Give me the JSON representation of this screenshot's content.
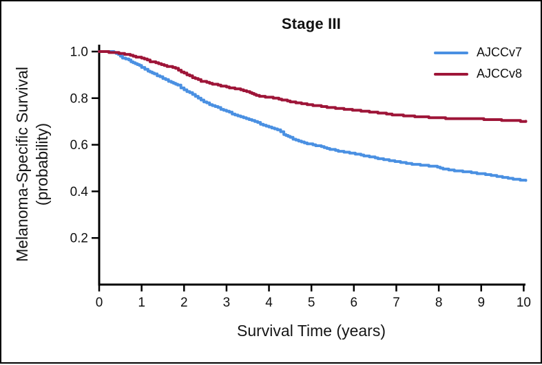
{
  "figure": {
    "background": "#ffffff",
    "border_color": "#000000",
    "axis_color": "#000000",
    "tick_label_color": "#111111"
  },
  "chart_data": {
    "type": "line",
    "subtype": "kaplan-meier-step",
    "title": "Stage III",
    "xlabel": "Survival Time (years)",
    "ylabel_lines": [
      "Melanoma-Specific Survival",
      "(probability)"
    ],
    "xlim": [
      0,
      10
    ],
    "ylim": [
      0,
      1.0
    ],
    "xticks": [
      0,
      1,
      2,
      3,
      4,
      5,
      6,
      7,
      8,
      9,
      10
    ],
    "xtick_labels": [
      "0",
      "1",
      "2",
      "3",
      "4",
      "5",
      "6",
      "7",
      "8",
      "9",
      "10"
    ],
    "yticks": [
      0.2,
      0.4,
      0.6,
      0.8,
      1.0
    ],
    "ytick_labels": [
      "0.2",
      "0.4",
      "0.6",
      "0.8",
      "1.0"
    ],
    "grid": false,
    "legend_position": "top-right",
    "series": [
      {
        "name": "AJCCv7",
        "color": "#4A90E2",
        "x": [
          0,
          0.3,
          0.45,
          0.55,
          0.7,
          0.85,
          1.0,
          1.15,
          1.3,
          1.5,
          1.7,
          1.85,
          2.0,
          2.2,
          2.4,
          2.6,
          2.8,
          3.0,
          3.2,
          3.4,
          3.6,
          3.8,
          4.0,
          4.2,
          4.35,
          4.5,
          4.7,
          4.9,
          5.1,
          5.3,
          5.5,
          5.7,
          5.9,
          6.1,
          6.3,
          6.5,
          6.7,
          6.9,
          7.1,
          7.3,
          7.5,
          7.7,
          7.9,
          8.1,
          8.3,
          8.5,
          8.7,
          8.9,
          9.1,
          9.3,
          9.5,
          9.7,
          9.85,
          10.05
        ],
        "y": [
          1.0,
          0.998,
          0.988,
          0.972,
          0.962,
          0.95,
          0.932,
          0.915,
          0.903,
          0.884,
          0.868,
          0.854,
          0.836,
          0.818,
          0.79,
          0.773,
          0.758,
          0.745,
          0.728,
          0.715,
          0.703,
          0.69,
          0.676,
          0.664,
          0.645,
          0.63,
          0.617,
          0.605,
          0.597,
          0.588,
          0.578,
          0.571,
          0.566,
          0.558,
          0.55,
          0.544,
          0.536,
          0.53,
          0.525,
          0.519,
          0.514,
          0.51,
          0.506,
          0.496,
          0.491,
          0.487,
          0.482,
          0.477,
          0.473,
          0.466,
          0.461,
          0.455,
          0.45,
          0.447
        ]
      },
      {
        "name": "AJCCv8",
        "color": "#9E1538",
        "x": [
          0,
          0.4,
          0.6,
          0.8,
          1.0,
          1.2,
          1.4,
          1.6,
          1.8,
          2.0,
          2.2,
          2.4,
          2.6,
          2.8,
          3.0,
          3.2,
          3.4,
          3.55,
          3.7,
          3.85,
          4.1,
          4.3,
          4.5,
          4.7,
          4.9,
          5.1,
          5.3,
          5.5,
          5.7,
          5.9,
          6.1,
          6.3,
          6.5,
          6.7,
          6.9,
          7.1,
          7.3,
          7.5,
          7.7,
          7.9,
          8.1,
          8.4,
          8.7,
          9.0,
          9.3,
          9.6,
          9.8,
          10.05
        ],
        "y": [
          1.0,
          0.996,
          0.989,
          0.981,
          0.971,
          0.958,
          0.948,
          0.938,
          0.928,
          0.906,
          0.888,
          0.873,
          0.864,
          0.856,
          0.847,
          0.841,
          0.832,
          0.825,
          0.813,
          0.806,
          0.801,
          0.793,
          0.785,
          0.778,
          0.772,
          0.768,
          0.763,
          0.758,
          0.754,
          0.751,
          0.747,
          0.743,
          0.739,
          0.734,
          0.729,
          0.726,
          0.723,
          0.721,
          0.718,
          0.716,
          0.714,
          0.712,
          0.711,
          0.71,
          0.707,
          0.705,
          0.703,
          0.701
        ]
      }
    ]
  }
}
